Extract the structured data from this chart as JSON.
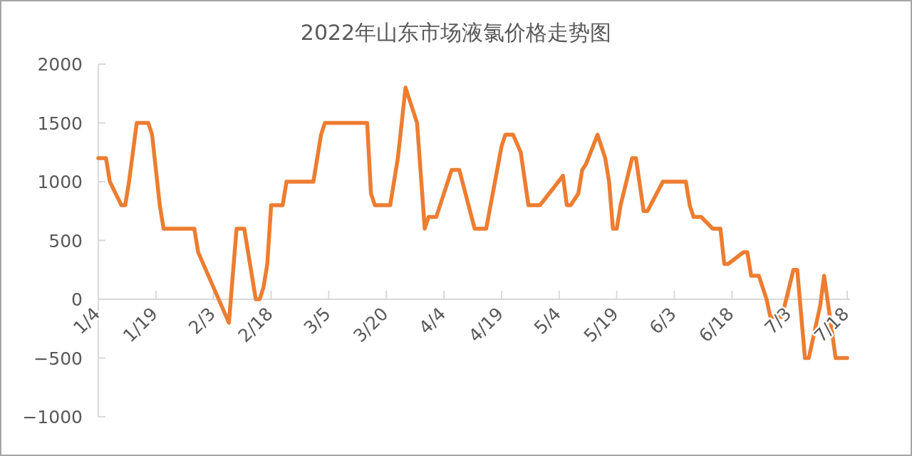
{
  "chart_data": {
    "type": "line",
    "title": "2022年山东市场液氯价格走势图",
    "x": [
      "2022-01-04",
      "2022-01-06",
      "2022-01-07",
      "2022-01-10",
      "2022-01-11",
      "2022-01-12",
      "2022-01-14",
      "2022-01-17",
      "2022-01-18",
      "2022-01-20",
      "2022-01-21",
      "2022-01-29",
      "2022-01-30",
      "2022-02-07",
      "2022-02-09",
      "2022-02-11",
      "2022-02-14",
      "2022-02-15",
      "2022-02-16",
      "2022-02-17",
      "2022-02-18",
      "2022-02-21",
      "2022-02-22",
      "2022-03-01",
      "2022-03-03",
      "2022-03-04",
      "2022-03-15",
      "2022-03-16",
      "2022-03-17",
      "2022-03-21",
      "2022-03-23",
      "2022-03-25",
      "2022-03-28",
      "2022-03-30",
      "2022-03-31",
      "2022-04-02",
      "2022-04-06",
      "2022-04-08",
      "2022-04-12",
      "2022-04-15",
      "2022-04-19",
      "2022-04-20",
      "2022-04-22",
      "2022-04-24",
      "2022-04-26",
      "2022-04-29",
      "2022-05-05",
      "2022-05-06",
      "2022-05-07",
      "2022-05-09",
      "2022-05-10",
      "2022-05-11",
      "2022-05-14",
      "2022-05-16",
      "2022-05-17",
      "2022-05-18",
      "2022-05-19",
      "2022-05-20",
      "2022-05-23",
      "2022-05-24",
      "2022-05-26",
      "2022-05-27",
      "2022-05-31",
      "2022-06-06",
      "2022-06-07",
      "2022-06-08",
      "2022-06-10",
      "2022-06-13",
      "2022-06-15",
      "2022-06-16",
      "2022-06-17",
      "2022-06-21",
      "2022-06-22",
      "2022-06-23",
      "2022-06-25",
      "2022-06-27",
      "2022-06-28",
      "2022-07-01",
      "2022-07-04",
      "2022-07-05",
      "2022-07-07",
      "2022-07-08",
      "2022-07-11",
      "2022-07-12",
      "2022-07-15",
      "2022-07-18"
    ],
    "series": [
      {
        "color": "#ed7d31",
        "values": [
          1200,
          1200,
          1000,
          800,
          800,
          1000,
          1500,
          1500,
          1400,
          800,
          600,
          600,
          400,
          -200,
          600,
          600,
          0,
          0,
          100,
          300,
          800,
          800,
          1000,
          1000,
          1400,
          1500,
          1500,
          900,
          800,
          800,
          1200,
          1800,
          1500,
          600,
          700,
          700,
          1100,
          1100,
          600,
          600,
          1300,
          1400,
          1400,
          1250,
          800,
          800,
          1050,
          800,
          800,
          900,
          1100,
          1150,
          1400,
          1200,
          1000,
          600,
          600,
          800,
          1200,
          1200,
          750,
          750,
          1000,
          1000,
          800,
          700,
          700,
          600,
          600,
          300,
          300,
          400,
          400,
          200,
          200,
          0,
          -150,
          -150,
          250,
          250,
          -500,
          -500,
          -50,
          200,
          -500,
          -500
        ]
      }
    ],
    "xlim": [
      "2022-01-04",
      "2022-07-18"
    ],
    "xticks": [
      {
        "value": "2022-01-04",
        "label": "1/4"
      },
      {
        "value": "2022-01-19",
        "label": "1/19"
      },
      {
        "value": "2022-02-03",
        "label": "2/3"
      },
      {
        "value": "2022-02-18",
        "label": "2/18"
      },
      {
        "value": "2022-03-05",
        "label": "3/5"
      },
      {
        "value": "2022-03-20",
        "label": "3/20"
      },
      {
        "value": "2022-04-04",
        "label": "4/4"
      },
      {
        "value": "2022-04-19",
        "label": "4/19"
      },
      {
        "value": "2022-05-04",
        "label": "5/4"
      },
      {
        "value": "2022-05-19",
        "label": "5/19"
      },
      {
        "value": "2022-06-03",
        "label": "6/3"
      },
      {
        "value": "2022-06-18",
        "label": "6/18"
      },
      {
        "value": "2022-07-03",
        "label": "7/3"
      },
      {
        "value": "2022-07-18",
        "label": "7/18"
      }
    ],
    "ylim": [
      -1000,
      2000
    ],
    "yticks": [
      -1000,
      -500,
      0,
      500,
      1000,
      1500,
      2000
    ],
    "line_style": "solid"
  }
}
